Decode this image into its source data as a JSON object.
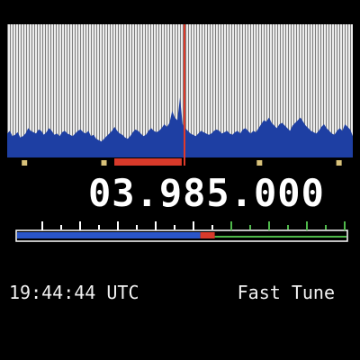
{
  "display": {
    "frequency": "03.985.000",
    "time": "19:44:44 UTC",
    "mode": "Fast Tune"
  },
  "spectrum": {
    "levels": [
      0.18,
      0.2,
      0.16,
      0.17,
      0.19,
      0.15,
      0.16,
      0.18,
      0.22,
      0.2,
      0.19,
      0.18,
      0.21,
      0.2,
      0.17,
      0.19,
      0.22,
      0.2,
      0.17,
      0.18,
      0.16,
      0.19,
      0.2,
      0.18,
      0.17,
      0.16,
      0.18,
      0.2,
      0.21,
      0.19,
      0.18,
      0.2,
      0.16,
      0.17,
      0.14,
      0.13,
      0.12,
      0.14,
      0.16,
      0.18,
      0.2,
      0.23,
      0.2,
      0.18,
      0.17,
      0.15,
      0.14,
      0.16,
      0.19,
      0.21,
      0.2,
      0.18,
      0.16,
      0.17,
      0.2,
      0.22,
      0.2,
      0.19,
      0.2,
      0.22,
      0.25,
      0.23,
      0.26,
      0.35,
      0.3,
      0.28,
      0.45,
      0.25,
      0.22,
      0.2,
      0.18,
      0.17,
      0.16,
      0.18,
      0.2,
      0.19,
      0.18,
      0.17,
      0.18,
      0.2,
      0.21,
      0.2,
      0.18,
      0.19,
      0.2,
      0.18,
      0.17,
      0.19,
      0.2,
      0.18,
      0.21,
      0.22,
      0.2,
      0.18,
      0.2,
      0.19,
      0.22,
      0.25,
      0.28,
      0.27,
      0.3,
      0.26,
      0.24,
      0.22,
      0.25,
      0.26,
      0.24,
      0.22,
      0.2,
      0.24,
      0.26,
      0.28,
      0.3,
      0.27,
      0.24,
      0.22,
      0.2,
      0.19,
      0.18,
      0.2,
      0.23,
      0.25,
      0.22,
      0.2,
      0.18,
      0.17,
      0.2,
      0.22,
      0.2,
      0.25,
      0.23,
      0.21,
      0.16
    ],
    "tuned_position": 0.513,
    "passband": [
      0.31,
      0.505
    ]
  },
  "tuning_bar": {
    "position": 0.6
  },
  "colors": {
    "spectrum_fill": "#1e3fa3",
    "spectrum_bg_light": "#e9e9e9",
    "spectrum_bg_dark": "#8e8e8e",
    "tune_marker": "#e03a2a",
    "passband": "#d83a2a",
    "scale_left": "#2a55c8",
    "scale_right": "#4eb84a",
    "ticks": "#ffffff",
    "marker_dot": "#d9c27a"
  }
}
